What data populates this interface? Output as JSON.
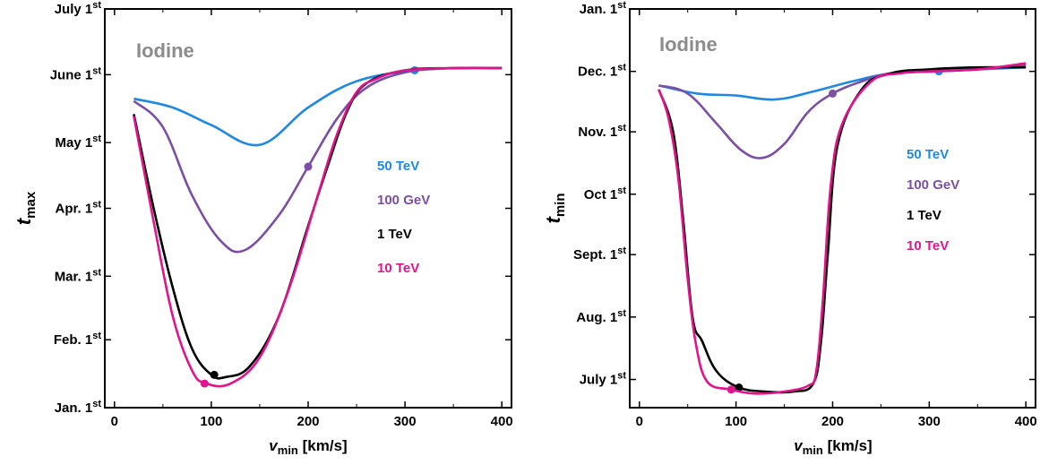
{
  "chart_data": [
    {
      "type": "line",
      "title": "Iodine",
      "title_color": "#8c8c8c",
      "xlabel": {
        "main": "v",
        "sub": "min",
        "suffix": " [km/s]"
      },
      "ylabel": {
        "main": "t",
        "sub": "max"
      },
      "xlim": [
        -10,
        410
      ],
      "xticks": [
        0,
        100,
        200,
        300,
        400
      ],
      "ylim": [
        "2000-01-01",
        "2000-07-01"
      ],
      "yticks": [
        {
          "date": "2000-01-01",
          "label": "Jan. 1",
          "sup": "st"
        },
        {
          "date": "2000-02-01",
          "label": "Feb. 1",
          "sup": "st"
        },
        {
          "date": "2000-03-01",
          "label": "Mar. 1",
          "sup": "st"
        },
        {
          "date": "2000-04-01",
          "label": "Apr. 1",
          "sup": "st"
        },
        {
          "date": "2000-05-01",
          "label": "May 1",
          "sup": "st"
        },
        {
          "date": "2000-06-01",
          "label": "June 1",
          "sup": "st"
        },
        {
          "date": "2000-07-01",
          "label": "July 1",
          "sup": "st"
        }
      ],
      "grid": false,
      "legend_placement": "right-center",
      "series": [
        {
          "name": "50 TeV",
          "color": "#1f88e5",
          "x": [
            20,
            60,
            100,
            150,
            200,
            250,
            310,
            360,
            400
          ],
          "y": [
            "2000-05-21",
            "2000-05-17",
            "2000-05-09",
            "2000-04-30",
            "2000-05-17",
            "2000-05-29",
            "2000-06-03",
            "2000-06-04",
            "2000-06-04"
          ],
          "marker": {
            "x": 310,
            "y": "2000-06-03"
          }
        },
        {
          "name": "100 GeV",
          "color": "#7b4fa5",
          "x": [
            20,
            50,
            80,
            110,
            135,
            170,
            200,
            230,
            260,
            300,
            350,
            400
          ],
          "y": [
            "2000-05-20",
            "2000-05-08",
            "2000-04-07",
            "2000-03-17",
            "2000-03-13",
            "2000-03-29",
            "2000-04-20",
            "2000-05-12",
            "2000-05-26",
            "2000-06-02",
            "2000-06-04",
            "2000-06-04"
          ],
          "marker": {
            "x": 200,
            "y": "2000-04-20"
          }
        },
        {
          "name": "1 TeV",
          "color": "#000000",
          "x": [
            20,
            40,
            60,
            80,
            100,
            115,
            140,
            170,
            200,
            220,
            240,
            260,
            300,
            350,
            400
          ],
          "y": [
            "2000-05-14",
            "2000-04-02",
            "2000-02-25",
            "2000-01-28",
            "2000-01-16",
            "2000-01-15",
            "2000-01-20",
            "2000-02-12",
            "2000-03-24",
            "2000-04-20",
            "2000-05-15",
            "2000-05-28",
            "2000-06-03",
            "2000-06-04",
            "2000-06-04"
          ],
          "marker": {
            "x": 103,
            "y": "2000-01-16"
          }
        },
        {
          "name": "10 TeV",
          "color": "#e0148c",
          "x": [
            20,
            40,
            60,
            80,
            95,
            120,
            150,
            180,
            210,
            230,
            250,
            270,
            300,
            350,
            400
          ],
          "y": [
            "2000-05-13",
            "2000-03-27",
            "2000-02-12",
            "2000-01-18",
            "2000-01-12",
            "2000-01-12",
            "2000-01-24",
            "2000-02-24",
            "2000-04-07",
            "2000-05-05",
            "2000-05-24",
            "2000-05-30",
            "2000-06-03",
            "2000-06-04",
            "2000-06-04"
          ],
          "marker": {
            "x": 93,
            "y": "2000-01-12"
          }
        }
      ]
    },
    {
      "type": "line",
      "title": "Iodine",
      "title_color": "#8c8c8c",
      "xlabel": {
        "main": "v",
        "sub": "min",
        "suffix": " [km/s]"
      },
      "ylabel": {
        "main": "t",
        "sub": "min"
      },
      "xlim": [
        -10,
        410
      ],
      "xticks": [
        0,
        100,
        200,
        300,
        400
      ],
      "ylim": [
        "2000-06-17",
        "2001-01-01"
      ],
      "yticks": [
        {
          "date": "2000-07-01",
          "label": "July 1",
          "sup": "st"
        },
        {
          "date": "2000-08-01",
          "label": "Aug. 1",
          "sup": "st"
        },
        {
          "date": "2000-09-01",
          "label": "Sept. 1",
          "sup": "st"
        },
        {
          "date": "2000-10-01",
          "label": "Oct 1",
          "sup": "st"
        },
        {
          "date": "2000-11-01",
          "label": "Nov. 1",
          "sup": "st"
        },
        {
          "date": "2000-12-01",
          "label": "Dec. 1",
          "sup": "st"
        },
        {
          "date": "2001-01-01",
          "label": "Jan. 1",
          "sup": "st"
        }
      ],
      "grid": false,
      "legend_placement": "right-center",
      "series": [
        {
          "name": "50 TeV",
          "color": "#1f88e5",
          "x": [
            20,
            60,
            100,
            140,
            180,
            220,
            260,
            310,
            350,
            400
          ],
          "y": [
            "2000-11-24",
            "2000-11-20",
            "2000-11-19",
            "2000-11-17",
            "2000-11-21",
            "2000-11-26",
            "2000-11-30",
            "2000-12-01",
            "2000-12-02",
            "2000-12-03"
          ],
          "marker": {
            "x": 310,
            "y": "2000-12-01"
          }
        },
        {
          "name": "100 GeV",
          "color": "#7b4fa5",
          "x": [
            20,
            50,
            80,
            105,
            127,
            150,
            175,
            200,
            230,
            260,
            300,
            350,
            400
          ],
          "y": [
            "2000-11-24",
            "2000-11-20",
            "2000-11-05",
            "2000-10-23",
            "2000-10-19",
            "2000-10-26",
            "2000-11-11",
            "2000-11-20",
            "2000-11-26",
            "2000-11-30",
            "2000-12-01",
            "2000-12-02",
            "2000-12-04"
          ],
          "marker": {
            "x": 200,
            "y": "2000-11-20"
          }
        },
        {
          "name": "1 TeV",
          "color": "#000000",
          "x": [
            20,
            35,
            45,
            55,
            65,
            80,
            103,
            130,
            160,
            180,
            188,
            195,
            205,
            230,
            260,
            300,
            350,
            400
          ],
          "y": [
            "2000-11-22",
            "2000-11-01",
            "2000-09-20",
            "2000-08-01",
            "2000-07-20",
            "2000-07-05",
            "2000-06-27",
            "2000-06-25",
            "2000-06-25",
            "2000-06-29",
            "2000-07-20",
            "2000-09-01",
            "2000-10-25",
            "2000-11-22",
            "2000-11-30",
            "2000-12-02",
            "2000-12-03",
            "2000-12-03"
          ],
          "marker": {
            "x": 103,
            "y": "2000-06-27"
          }
        },
        {
          "name": "10 TeV",
          "color": "#e0148c",
          "x": [
            20,
            30,
            40,
            50,
            58,
            70,
            95,
            120,
            150,
            175,
            183,
            190,
            198,
            210,
            240,
            270,
            300,
            350,
            400
          ],
          "y": [
            "2000-11-22",
            "2000-11-08",
            "2000-10-10",
            "2000-08-20",
            "2000-07-20",
            "2000-06-30",
            "2000-06-26",
            "2000-06-24",
            "2000-06-25",
            "2000-06-28",
            "2000-07-05",
            "2000-08-10",
            "2000-10-05",
            "2000-11-05",
            "2000-11-26",
            "2000-11-30",
            "2000-12-01",
            "2000-12-02",
            "2000-12-05"
          ],
          "marker": {
            "x": 95,
            "y": "2000-06-26"
          }
        }
      ]
    }
  ]
}
